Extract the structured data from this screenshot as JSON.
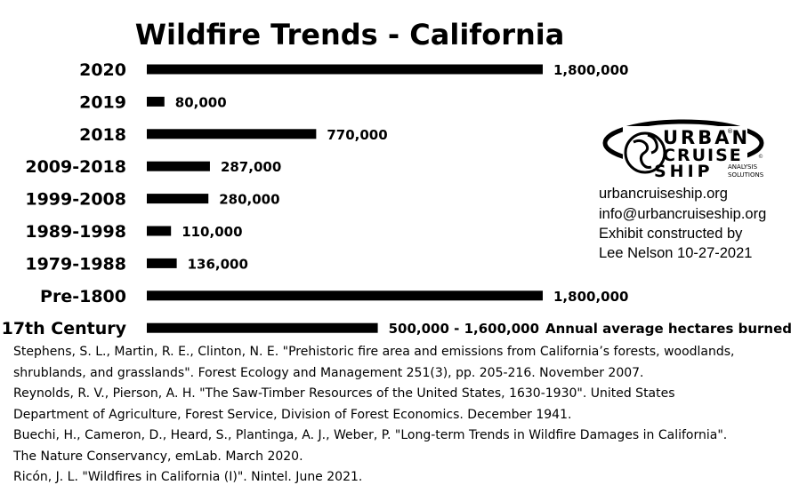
{
  "chart_data": {
    "type": "bar",
    "orientation": "horizontal",
    "title": "Wildfire Trends - California",
    "categories": [
      "2020",
      "2019",
      "2018",
      "2009-2018",
      "1999-2008",
      "1989-1998",
      "1979-1988",
      "Pre-1800",
      "17th Century"
    ],
    "values": [
      1800000,
      80000,
      770000,
      287000,
      280000,
      110000,
      136000,
      1800000,
      1050000
    ],
    "range_low": [
      null,
      null,
      null,
      null,
      null,
      null,
      null,
      null,
      500000
    ],
    "range_high": [
      null,
      null,
      null,
      null,
      null,
      null,
      null,
      null,
      1600000
    ],
    "value_labels": [
      "1,800,000",
      "80,000",
      "770,000",
      "287,000",
      "280,000",
      "110,000",
      "136,000",
      "1,800,000",
      "500,000 - 1,600,000"
    ],
    "unit_note": "Annual average hectares burned",
    "xlim": [
      0,
      1800000
    ],
    "grid": false,
    "bar_color": "#000000"
  },
  "logo": {
    "line1": "URBAN",
    "line2": "CRUISE",
    "line3": "SHIP",
    "tagline1": "ANALYSIS",
    "tagline2": "SOLUTIONS",
    "mark": "®",
    "mark2": "©"
  },
  "credits": {
    "website": "urbancruiseship.org",
    "email": "info@urbancruiseship.org",
    "exhibit": "Exhibit constructed by",
    "author_date": "Lee Nelson 10-27-2021"
  },
  "references": [
    "Stephens, S. L., Martin, R. E., Clinton, N. E. \"Prehistoric fire area and emissions from California’s forests, woodlands,",
    "shrublands, and grasslands\". Forest Ecology and Management 251(3), pp. 205-216. November 2007.",
    "Reynolds, R. V., Pierson, A. H. \"The Saw-Timber Resources of the United States, 1630-1930\". United States",
    "Department of Agriculture, Forest Service, Division of Forest Economics. December 1941.",
    "Buechi, H., Cameron, D., Heard, S., Plantinga, A. J., Weber, P. \"Long-term Trends in Wildfire Damages in California\".",
    "The Nature Conservancy, emLab. March 2020.",
    "Ricón, J. L. \"Wildfires in California (I)\". Nintel. June 2021."
  ]
}
